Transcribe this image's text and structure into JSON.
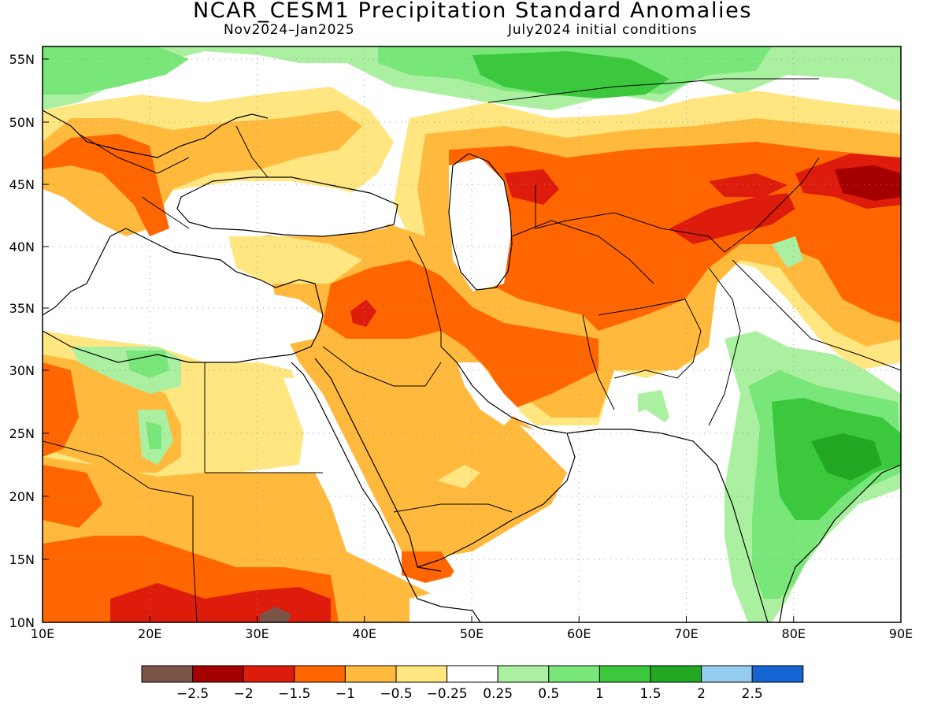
{
  "title": "NCAR_CESM1 Precipitation Standard Anomalies",
  "subtitle_left": "Nov2024–Jan2025",
  "subtitle_right": "July2024 initial conditions",
  "axes": {
    "lon_labels": [
      "10E",
      "20E",
      "30E",
      "40E",
      "50E",
      "60E",
      "70E",
      "80E",
      "90E"
    ],
    "lat_labels": [
      "10N",
      "15N",
      "20N",
      "25N",
      "30N",
      "35N",
      "40N",
      "45N",
      "50N",
      "55N"
    ]
  },
  "colorbar": {
    "colors": [
      "#7a5547",
      "#a50000",
      "#dd1c0b",
      "#ff6600",
      "#ffb93d",
      "#ffe680",
      "#ffffff",
      "#aaf0a0",
      "#78e678",
      "#3cc83c",
      "#22a822",
      "#94ccf0",
      "#1464d2"
    ],
    "labels": [
      "−2.5",
      "−2",
      "−1.5",
      "−1",
      "−0.5",
      "−0.25",
      "0.25",
      "0.5",
      "1",
      "1.5",
      "2",
      "2.5"
    ]
  },
  "palette": {
    "light_green": "#aaf0a0",
    "green": "#78e678",
    "mid_green": "#3cc83c",
    "dark_green": "#22a822",
    "light_yellow": "#ffe680",
    "yellow_orange": "#ffb93d",
    "orange": "#ff6600",
    "red": "#dd1c0b",
    "dark_red": "#a50000",
    "brown": "#7a5547"
  }
}
